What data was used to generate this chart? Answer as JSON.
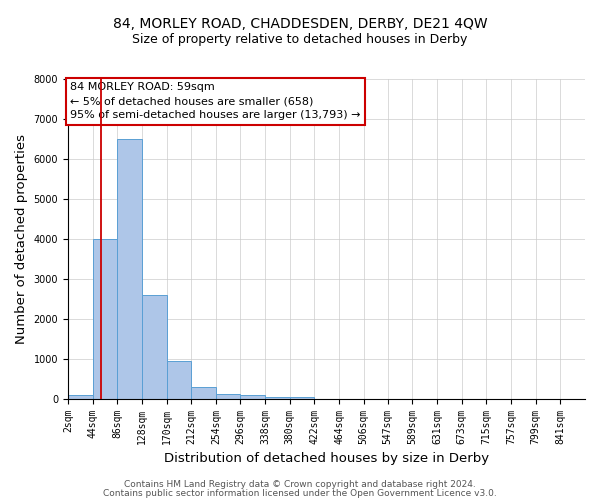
{
  "title": "84, MORLEY ROAD, CHADDESDEN, DERBY, DE21 4QW",
  "subtitle": "Size of property relative to detached houses in Derby",
  "xlabel": "Distribution of detached houses by size in Derby",
  "ylabel": "Number of detached properties",
  "bar_edges": [
    2,
    44,
    86,
    128,
    170,
    212,
    254,
    296,
    338,
    380,
    422,
    464,
    506,
    547,
    589,
    631,
    673,
    715,
    757,
    799,
    841
  ],
  "bar_heights": [
    100,
    4000,
    6500,
    2600,
    950,
    300,
    125,
    80,
    50,
    50,
    0,
    0,
    0,
    0,
    0,
    0,
    0,
    0,
    0,
    0
  ],
  "bar_color": "#aec6e8",
  "bar_edgecolor": "#5a9fd4",
  "property_line_x": 59,
  "property_line_color": "#cc0000",
  "ylim": [
    0,
    8000
  ],
  "annotation_text": "84 MORLEY ROAD: 59sqm\n← 5% of detached houses are smaller (658)\n95% of semi-detached houses are larger (13,793) →",
  "annotation_box_color": "#ffffff",
  "annotation_box_edgecolor": "#cc0000",
  "footnote1": "Contains HM Land Registry data © Crown copyright and database right 2024.",
  "footnote2": "Contains public sector information licensed under the Open Government Licence v3.0.",
  "title_fontsize": 10,
  "subtitle_fontsize": 9,
  "axis_label_fontsize": 9.5,
  "tick_fontsize": 7,
  "annotation_fontsize": 8,
  "footnote_fontsize": 6.5,
  "grid_color": "#cccccc",
  "background_color": "#ffffff"
}
